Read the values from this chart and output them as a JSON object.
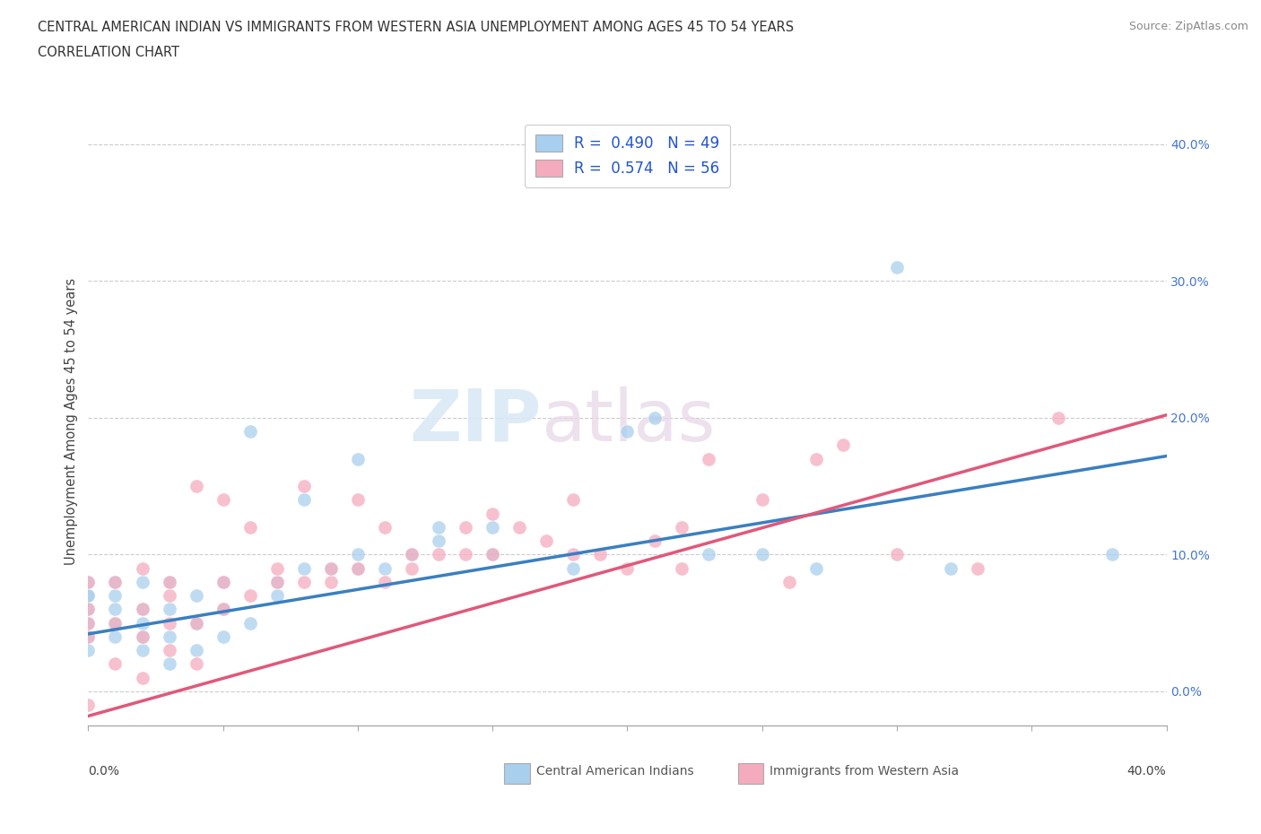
{
  "title_line1": "CENTRAL AMERICAN INDIAN VS IMMIGRANTS FROM WESTERN ASIA UNEMPLOYMENT AMONG AGES 45 TO 54 YEARS",
  "title_line2": "CORRELATION CHART",
  "source": "Source: ZipAtlas.com",
  "ylabel": "Unemployment Among Ages 45 to 54 years",
  "xlim": [
    0.0,
    0.4
  ],
  "ylim": [
    -0.025,
    0.42
  ],
  "ytick_positions": [
    0.0,
    0.1,
    0.2,
    0.3,
    0.4
  ],
  "ytick_labels": [
    "0.0%",
    "10.0%",
    "20.0%",
    "30.0%",
    "40.0%"
  ],
  "color_blue": "#A8CFED",
  "color_pink": "#F5ABBE",
  "line_color_blue": "#3A7FC1",
  "line_color_pink": "#E0587A",
  "watermark_zip": "ZIP",
  "watermark_atlas": "atlas",
  "blue_trend_x": [
    0.0,
    0.4
  ],
  "blue_trend_y": [
    0.042,
    0.172
  ],
  "pink_trend_x": [
    0.0,
    0.4
  ],
  "pink_trend_y": [
    -0.018,
    0.202
  ],
  "blue_scatter_x": [
    0.0,
    0.0,
    0.0,
    0.0,
    0.0,
    0.0,
    0.0,
    0.01,
    0.01,
    0.01,
    0.01,
    0.01,
    0.02,
    0.02,
    0.02,
    0.02,
    0.02,
    0.03,
    0.03,
    0.03,
    0.03,
    0.04,
    0.04,
    0.04,
    0.05,
    0.05,
    0.05,
    0.06,
    0.06,
    0.07,
    0.07,
    0.08,
    0.08,
    0.09,
    0.1,
    0.1,
    0.1,
    0.11,
    0.12,
    0.13,
    0.13,
    0.15,
    0.15,
    0.18,
    0.2,
    0.21,
    0.23,
    0.25,
    0.27,
    0.3,
    0.32,
    0.38
  ],
  "blue_scatter_y": [
    0.05,
    0.06,
    0.07,
    0.07,
    0.08,
    0.04,
    0.03,
    0.04,
    0.05,
    0.06,
    0.07,
    0.08,
    0.03,
    0.04,
    0.05,
    0.06,
    0.08,
    0.02,
    0.04,
    0.06,
    0.08,
    0.03,
    0.05,
    0.07,
    0.04,
    0.06,
    0.08,
    0.05,
    0.19,
    0.07,
    0.08,
    0.09,
    0.14,
    0.09,
    0.09,
    0.1,
    0.17,
    0.09,
    0.1,
    0.11,
    0.12,
    0.1,
    0.12,
    0.09,
    0.19,
    0.2,
    0.1,
    0.1,
    0.09,
    0.31,
    0.09,
    0.1
  ],
  "pink_scatter_x": [
    0.0,
    0.0,
    0.0,
    0.0,
    0.0,
    0.01,
    0.01,
    0.01,
    0.02,
    0.02,
    0.02,
    0.02,
    0.03,
    0.03,
    0.03,
    0.03,
    0.04,
    0.04,
    0.04,
    0.05,
    0.05,
    0.05,
    0.06,
    0.06,
    0.07,
    0.07,
    0.08,
    0.08,
    0.09,
    0.09,
    0.1,
    0.1,
    0.11,
    0.11,
    0.12,
    0.12,
    0.13,
    0.14,
    0.14,
    0.15,
    0.15,
    0.16,
    0.17,
    0.18,
    0.18,
    0.19,
    0.2,
    0.21,
    0.22,
    0.22,
    0.23,
    0.25,
    0.26,
    0.27,
    0.28,
    0.3,
    0.33,
    0.36
  ],
  "pink_scatter_y": [
    0.04,
    0.05,
    0.06,
    0.08,
    -0.01,
    0.05,
    0.08,
    0.02,
    0.04,
    0.06,
    0.09,
    0.01,
    0.03,
    0.05,
    0.07,
    0.08,
    0.05,
    0.02,
    0.15,
    0.06,
    0.14,
    0.08,
    0.07,
    0.12,
    0.08,
    0.09,
    0.08,
    0.15,
    0.08,
    0.09,
    0.09,
    0.14,
    0.08,
    0.12,
    0.09,
    0.1,
    0.1,
    0.1,
    0.12,
    0.1,
    0.13,
    0.12,
    0.11,
    0.1,
    0.14,
    0.1,
    0.09,
    0.11,
    0.09,
    0.12,
    0.17,
    0.14,
    0.08,
    0.17,
    0.18,
    0.1,
    0.09,
    0.2
  ]
}
